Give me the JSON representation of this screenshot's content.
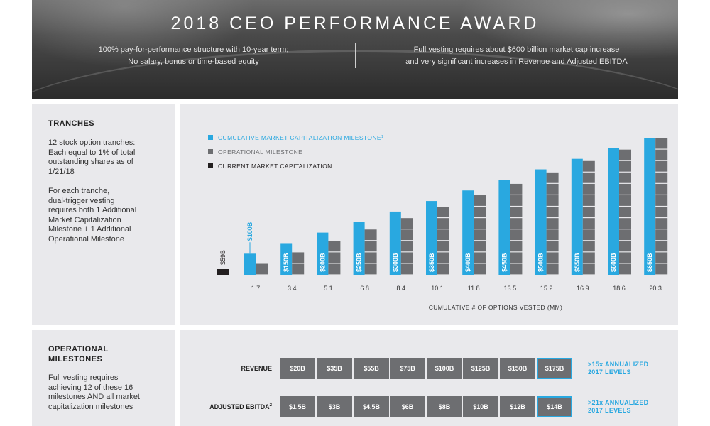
{
  "header": {
    "title": "2018 CEO PERFORMANCE AWARD",
    "left_line1": "100% pay-for-performance structure with 10-year term;",
    "left_line2": "No salary, bonus or time-based equity",
    "right_line1": "Full vesting requires about $600 billion market cap increase",
    "right_line2": "and very significant increases in Revenue and Adjusted EBITDA"
  },
  "tranches": {
    "title": "TRANCHES",
    "para1": [
      "12 stock option tranches:",
      "Each equal to 1% of total",
      "outstanding shares as of",
      "1/21/18"
    ],
    "para2": [
      "For each tranche,",
      "dual-trigger vesting",
      "requires both 1 Additional",
      "Market Capitalization",
      "Milestone + 1 Additional",
      "Operational Milestone"
    ]
  },
  "chart_data": {
    "type": "bar",
    "legend": [
      {
        "label": "CUMULATIVE MARKET CAPITALIZATION MILESTONE",
        "superscript": "1",
        "color": "#29a8e0"
      },
      {
        "label": "OPERATIONAL MILESTONE",
        "color": "#6d6e71"
      },
      {
        "label": "CURRENT MARKET CAPITALIZATION",
        "color": "#231f20"
      }
    ],
    "xlabel": "CUMULATIVE # OF OPTIONS VESTED (MM)",
    "current_market_cap": {
      "label": "$59B",
      "value": 59
    },
    "categories": [
      "1.7",
      "3.4",
      "5.1",
      "6.8",
      "8.4",
      "10.1",
      "11.8",
      "13.5",
      "15.2",
      "16.9",
      "18.6",
      "20.3"
    ],
    "series": [
      {
        "name": "CUMULATIVE MARKET CAPITALIZATION MILESTONE",
        "values": [
          100,
          150,
          200,
          250,
          300,
          350,
          400,
          450,
          500,
          550,
          600,
          650
        ],
        "labels": [
          "$100B",
          "$150B",
          "$200B",
          "$250B",
          "$300B",
          "$350B",
          "$400B",
          "$450B",
          "$500B",
          "$550B",
          "$600B",
          "$650B"
        ]
      },
      {
        "name": "OPERATIONAL MILESTONE",
        "values": [
          1,
          2,
          3,
          4,
          5,
          6,
          7,
          8,
          9,
          10,
          11,
          12
        ]
      }
    ],
    "ylim": [
      0,
      650
    ],
    "colors": {
      "market": "#29a8e0",
      "operational": "#6d6e71",
      "current": "#231f20"
    }
  },
  "operational": {
    "title_line1": "OPERATIONAL",
    "title_line2": "MILESTONES",
    "text": [
      "Full vesting requires",
      "achieving 12 of these 16",
      "milestones AND all market",
      "capitalization milestones"
    ]
  },
  "milestones": {
    "revenue": {
      "label": "REVENUE",
      "values": [
        "$20B",
        "$35B",
        "$55B",
        "$75B",
        "$100B",
        "$125B",
        "$150B",
        "$175B"
      ],
      "note_line1": ">15x ANNUALIZED",
      "note_line2": "2017 LEVELS"
    },
    "ebitda": {
      "label": "ADJUSTED EBITDA",
      "superscript": "2",
      "values": [
        "$1.5B",
        "$3B",
        "$4.5B",
        "$6B",
        "$8B",
        "$10B",
        "$12B",
        "$14B"
      ],
      "note_line1": ">21x ANNUALIZED",
      "note_line2": "2017 LEVELS"
    }
  }
}
